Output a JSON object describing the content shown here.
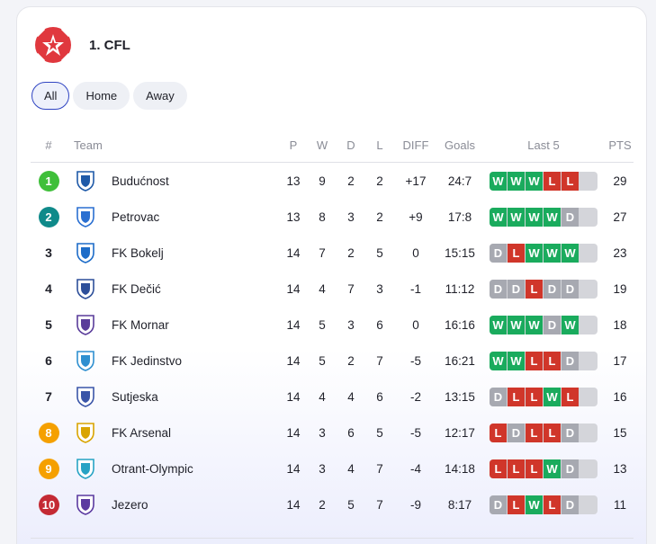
{
  "league": {
    "title": "1. CFL",
    "logo_icon": "red-star-logo-icon",
    "accent": "#e0383e"
  },
  "filters": [
    {
      "label": "All",
      "active": true
    },
    {
      "label": "Home",
      "active": false
    },
    {
      "label": "Away",
      "active": false
    }
  ],
  "columns": {
    "pos": "#",
    "team": "Team",
    "p": "P",
    "w": "W",
    "d": "D",
    "l": "L",
    "diff": "DIFF",
    "goals": "Goals",
    "last5": "Last 5",
    "pts": "PTS"
  },
  "colors": {
    "win": "#1aab5d",
    "loss": "#d0362a",
    "draw": "#a7a9b1",
    "pos_green": "#3fbf3a",
    "pos_teal": "#0f8a8a",
    "pos_orange": "#f5a000",
    "pos_red": "#c42a34"
  },
  "rows": [
    {
      "pos": "1",
      "badge": "green",
      "team": "Budućnost",
      "crest": "budocnost-crest-icon",
      "p": "13",
      "w": "9",
      "d": "2",
      "l": "2",
      "diff": "+17",
      "goals": "24:7",
      "form": [
        "W",
        "W",
        "W",
        "L",
        "L"
      ],
      "pts": "29"
    },
    {
      "pos": "2",
      "badge": "teal",
      "team": "Petrovac",
      "crest": "petrovac-crest-icon",
      "p": "13",
      "w": "8",
      "d": "3",
      "l": "2",
      "diff": "+9",
      "goals": "17:8",
      "form": [
        "W",
        "W",
        "W",
        "W",
        "D"
      ],
      "pts": "27"
    },
    {
      "pos": "3",
      "badge": "",
      "team": "FK Bokelj",
      "crest": "bokelj-crest-icon",
      "p": "14",
      "w": "7",
      "d": "2",
      "l": "5",
      "diff": "0",
      "goals": "15:15",
      "form": [
        "D",
        "L",
        "W",
        "W",
        "W"
      ],
      "pts": "23"
    },
    {
      "pos": "4",
      "badge": "",
      "team": "FK Dečić",
      "crest": "decic-crest-icon",
      "p": "14",
      "w": "4",
      "d": "7",
      "l": "3",
      "diff": "-1",
      "goals": "11:12",
      "form": [
        "D",
        "D",
        "L",
        "D",
        "D"
      ],
      "pts": "19"
    },
    {
      "pos": "5",
      "badge": "",
      "team": "FK Mornar",
      "crest": "mornar-crest-icon",
      "p": "14",
      "w": "5",
      "d": "3",
      "l": "6",
      "diff": "0",
      "goals": "16:16",
      "form": [
        "W",
        "W",
        "W",
        "D",
        "W"
      ],
      "pts": "18"
    },
    {
      "pos": "6",
      "badge": "",
      "team": "FK Jedinstvo",
      "crest": "jedinstvo-crest-icon",
      "p": "14",
      "w": "5",
      "d": "2",
      "l": "7",
      "diff": "-5",
      "goals": "16:21",
      "form": [
        "W",
        "W",
        "L",
        "L",
        "D"
      ],
      "pts": "17"
    },
    {
      "pos": "7",
      "badge": "",
      "team": "Sutjeska",
      "crest": "sutjeska-crest-icon",
      "p": "14",
      "w": "4",
      "d": "4",
      "l": "6",
      "diff": "-2",
      "goals": "13:15",
      "form": [
        "D",
        "L",
        "L",
        "W",
        "L"
      ],
      "pts": "16"
    },
    {
      "pos": "8",
      "badge": "orange",
      "team": "FK Arsenal",
      "crest": "arsenal-crest-icon",
      "p": "14",
      "w": "3",
      "d": "6",
      "l": "5",
      "diff": "-5",
      "goals": "12:17",
      "form": [
        "L",
        "D",
        "L",
        "L",
        "D"
      ],
      "pts": "15"
    },
    {
      "pos": "9",
      "badge": "orange",
      "team": "Otrant-Olympic",
      "crest": "otrant-crest-icon",
      "p": "14",
      "w": "3",
      "d": "4",
      "l": "7",
      "diff": "-4",
      "goals": "14:18",
      "form": [
        "L",
        "L",
        "L",
        "W",
        "D"
      ],
      "pts": "13"
    },
    {
      "pos": "10",
      "badge": "red",
      "team": "Jezero",
      "crest": "jezero-crest-icon",
      "p": "14",
      "w": "2",
      "d": "5",
      "l": "7",
      "diff": "-9",
      "goals": "8:17",
      "form": [
        "D",
        "L",
        "W",
        "L",
        "D"
      ],
      "pts": "11"
    }
  ]
}
